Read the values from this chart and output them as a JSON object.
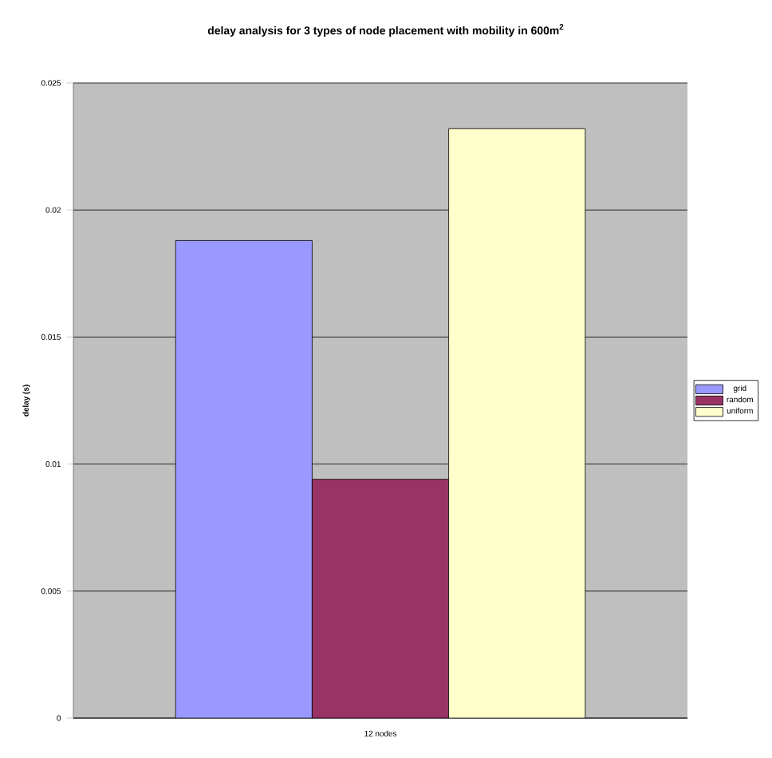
{
  "chart_data": {
    "type": "bar",
    "title": "delay analysis for 3 types of node placement with mobility in 600m$^{2}$",
    "ylabel": "delay (s)",
    "categories": [
      "12 nodes"
    ],
    "series": [
      {
        "name": "grid",
        "color": "#9999ff",
        "values": [
          0.0188
        ]
      },
      {
        "name": "random",
        "color": "#993366",
        "values": [
          0.0094
        ]
      },
      {
        "name": "uniform",
        "color": "#ffffcc",
        "values": [
          0.0232
        ]
      }
    ],
    "ylim": [
      0,
      0.025
    ],
    "yticks": [
      0,
      0.005,
      0.01,
      0.015,
      0.02,
      0.025
    ],
    "grid": "y",
    "legend": "right"
  }
}
